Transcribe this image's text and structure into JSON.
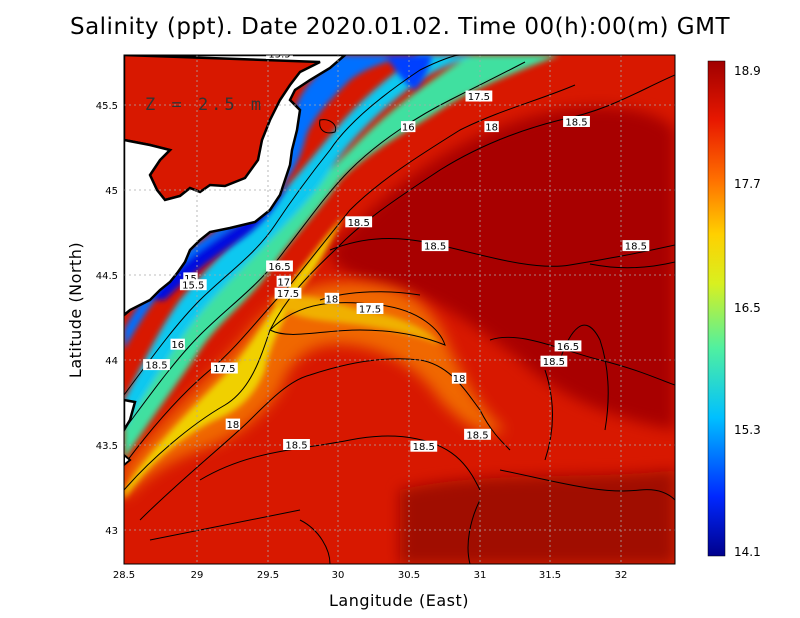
{
  "title": "Salinity (ppt). Date 2020.01.02. Time 00(h):00(m)  GMT",
  "depth_label": "Z  =  2.5  m",
  "x_axis": {
    "label": "Langitude (East)",
    "ticks": [
      "28.5",
      "29",
      "29.5",
      "30",
      "30.5",
      "31",
      "31.5",
      "32"
    ]
  },
  "y_axis": {
    "label": "Latitude (North)",
    "ticks": [
      "43",
      "43.5",
      "44",
      "44.5",
      "45",
      "45.5"
    ]
  },
  "colorbar": {
    "ticks": [
      "18.9",
      "17.7",
      "16.5",
      "15.3",
      "14.1"
    ],
    "min": 14.1,
    "max": 18.9
  },
  "contour_labels": [
    {
      "text": "15.5",
      "lon": 29.6,
      "lat": 45.8
    },
    {
      "text": "16",
      "lon": 30.51,
      "lat": 45.37
    },
    {
      "text": "17.5",
      "lon": 31.01,
      "lat": 45.55
    },
    {
      "text": "18",
      "lon": 31.1,
      "lat": 45.37
    },
    {
      "text": "18.5",
      "lon": 31.7,
      "lat": 45.4
    },
    {
      "text": "18.5",
      "lon": 30.16,
      "lat": 44.81
    },
    {
      "text": "18.5",
      "lon": 30.7,
      "lat": 44.67
    },
    {
      "text": "18.5",
      "lon": 32.12,
      "lat": 44.67
    },
    {
      "text": "16.5",
      "lon": 29.6,
      "lat": 44.55
    },
    {
      "text": "17",
      "lon": 29.63,
      "lat": 44.46
    },
    {
      "text": "15",
      "lon": 28.97,
      "lat": 44.48
    },
    {
      "text": "15.5",
      "lon": 28.99,
      "lat": 44.44
    },
    {
      "text": "17.5",
      "lon": 29.66,
      "lat": 44.39
    },
    {
      "text": "18",
      "lon": 29.97,
      "lat": 44.36
    },
    {
      "text": "17.5",
      "lon": 30.24,
      "lat": 44.3
    },
    {
      "text": "16",
      "lon": 28.88,
      "lat": 44.09
    },
    {
      "text": "18.5",
      "lon": 28.73,
      "lat": 43.97
    },
    {
      "text": "17.5",
      "lon": 29.21,
      "lat": 43.95
    },
    {
      "text": "18.5",
      "lon": 31.54,
      "lat": 43.99
    },
    {
      "text": "16.5",
      "lon": 31.64,
      "lat": 44.08
    },
    {
      "text": "18",
      "lon": 30.87,
      "lat": 43.89
    },
    {
      "text": "18",
      "lon": 29.27,
      "lat": 43.62
    },
    {
      "text": "18.5",
      "lon": 29.72,
      "lat": 43.5
    },
    {
      "text": "18.5",
      "lon": 31.0,
      "lat": 43.56
    },
    {
      "text": "18.5",
      "lon": 30.62,
      "lat": 43.49
    }
  ],
  "colors": {
    "deep_red": "#9a0000",
    "red": "#d81800",
    "orange": "#f07000",
    "yellow": "#f0e000",
    "green": "#70f070",
    "cyan": "#20d8f0",
    "blue": "#0050ff",
    "navy": "#00008c",
    "land": "#ffffff",
    "coast": "#000000"
  }
}
